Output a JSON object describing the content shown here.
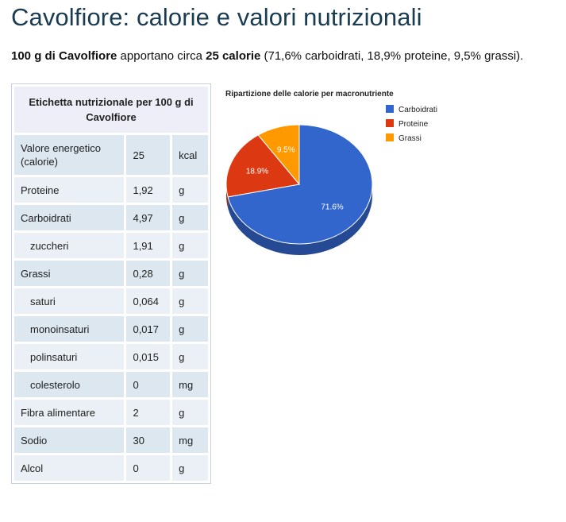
{
  "page": {
    "title": "Cavolfiore: calorie e valori nutrizionali",
    "intro": {
      "bold1": "100 g di Cavolfiore",
      "text1": " apportano circa ",
      "bold2": "25 calorie",
      "text2": " (71,6% carboidrati, 18,9% proteine, 9,5% grassi)."
    }
  },
  "table": {
    "header": "Etichetta nutrizionale per 100 g di Cavolfiore",
    "rows": [
      {
        "name": "Valore energetico (calorie)",
        "value": "25",
        "unit": "kcal"
      },
      {
        "name": "Proteine",
        "value": "1,92",
        "unit": "g"
      },
      {
        "name": "Carboidrati",
        "value": "4,97",
        "unit": "g"
      },
      {
        "name": "zuccheri",
        "value": "1,91",
        "unit": "g"
      },
      {
        "name": "Grassi",
        "value": "0,28",
        "unit": "g"
      },
      {
        "name": "saturi",
        "value": "0,064",
        "unit": "g"
      },
      {
        "name": "monoinsaturi",
        "value": "0,017",
        "unit": "g"
      },
      {
        "name": "polinsaturi",
        "value": "0,015",
        "unit": "g"
      },
      {
        "name": "colesterolo",
        "value": "0",
        "unit": "mg"
      },
      {
        "name": "Fibra alimentare",
        "value": "2",
        "unit": "g"
      },
      {
        "name": "Sodio",
        "value": "30",
        "unit": "mg"
      },
      {
        "name": "Alcol",
        "value": "0",
        "unit": "g"
      }
    ]
  },
  "chart_data": {
    "type": "pie",
    "title": "Ripartizione delle calorie per macronutriente",
    "three_d": true,
    "legend_position": "right",
    "slices": [
      {
        "label": "Carboidrati",
        "value": 71.6,
        "display": "71.6%",
        "color": "#3366cc"
      },
      {
        "label": "Proteine",
        "value": 18.9,
        "display": "18.9%",
        "color": "#dc3912"
      },
      {
        "label": "Grassi",
        "value": 9.5,
        "display": "9.5%",
        "color": "#ff9900"
      }
    ]
  }
}
